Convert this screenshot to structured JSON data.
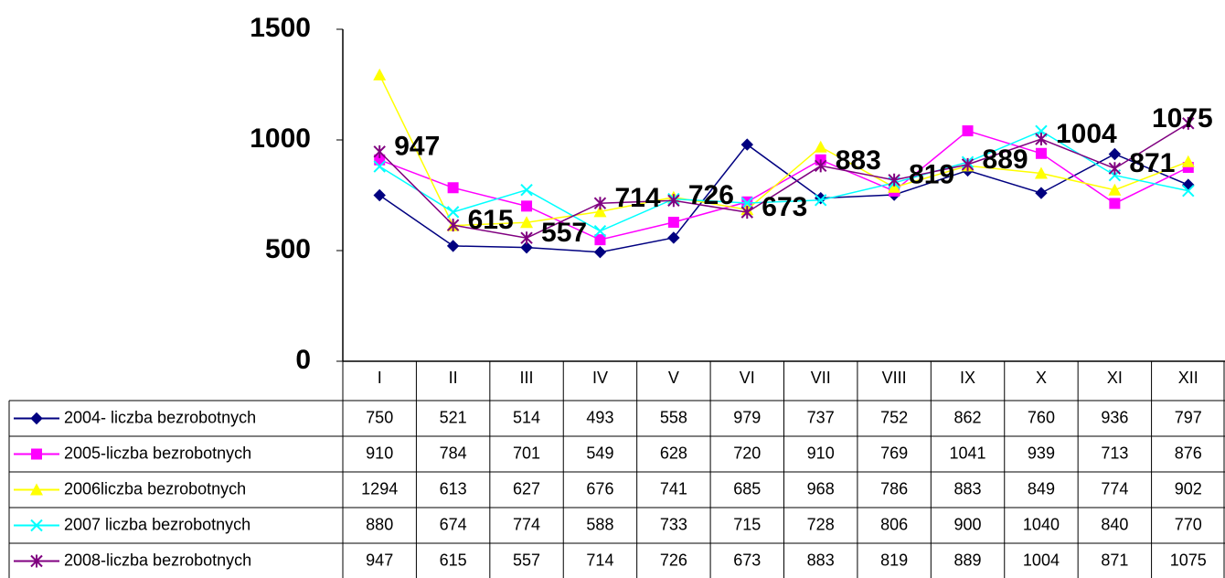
{
  "chart_data": {
    "type": "line",
    "categories": [
      "I",
      "II",
      "III",
      "IV",
      "V",
      "VI",
      "VII",
      "VIII",
      "IX",
      "X",
      "XI",
      "XII"
    ],
    "ylim": [
      0,
      1500
    ],
    "yticks": [
      0,
      500,
      1000,
      1500
    ],
    "series": [
      {
        "name": "2004- liczba bezrobotnych",
        "color": "#000080",
        "marker": "diamond",
        "values": [
          750,
          521,
          514,
          493,
          558,
          979,
          737,
          752,
          862,
          760,
          936,
          797
        ]
      },
      {
        "name": "2005-liczba bezrobotnych",
        "color": "#ff00ff",
        "marker": "square",
        "values": [
          910,
          784,
          701,
          549,
          628,
          720,
          910,
          769,
          1041,
          939,
          713,
          876
        ]
      },
      {
        "name": "2006liczba bezrobotnych",
        "color": "#ffff00",
        "marker": "triangle",
        "values": [
          1294,
          613,
          627,
          676,
          741,
          685,
          968,
          786,
          883,
          849,
          774,
          902
        ]
      },
      {
        "name": "2007 liczba bezrobotnych",
        "color": "#00ffff",
        "marker": "x",
        "values": [
          880,
          674,
          774,
          588,
          733,
          715,
          728,
          806,
          900,
          1040,
          840,
          770
        ]
      },
      {
        "name": "2008-liczba bezrobotnych",
        "color": "#800080",
        "marker": "star",
        "data_labels": true,
        "values": [
          947,
          615,
          557,
          714,
          726,
          673,
          883,
          819,
          889,
          1004,
          871,
          1075
        ]
      }
    ]
  }
}
